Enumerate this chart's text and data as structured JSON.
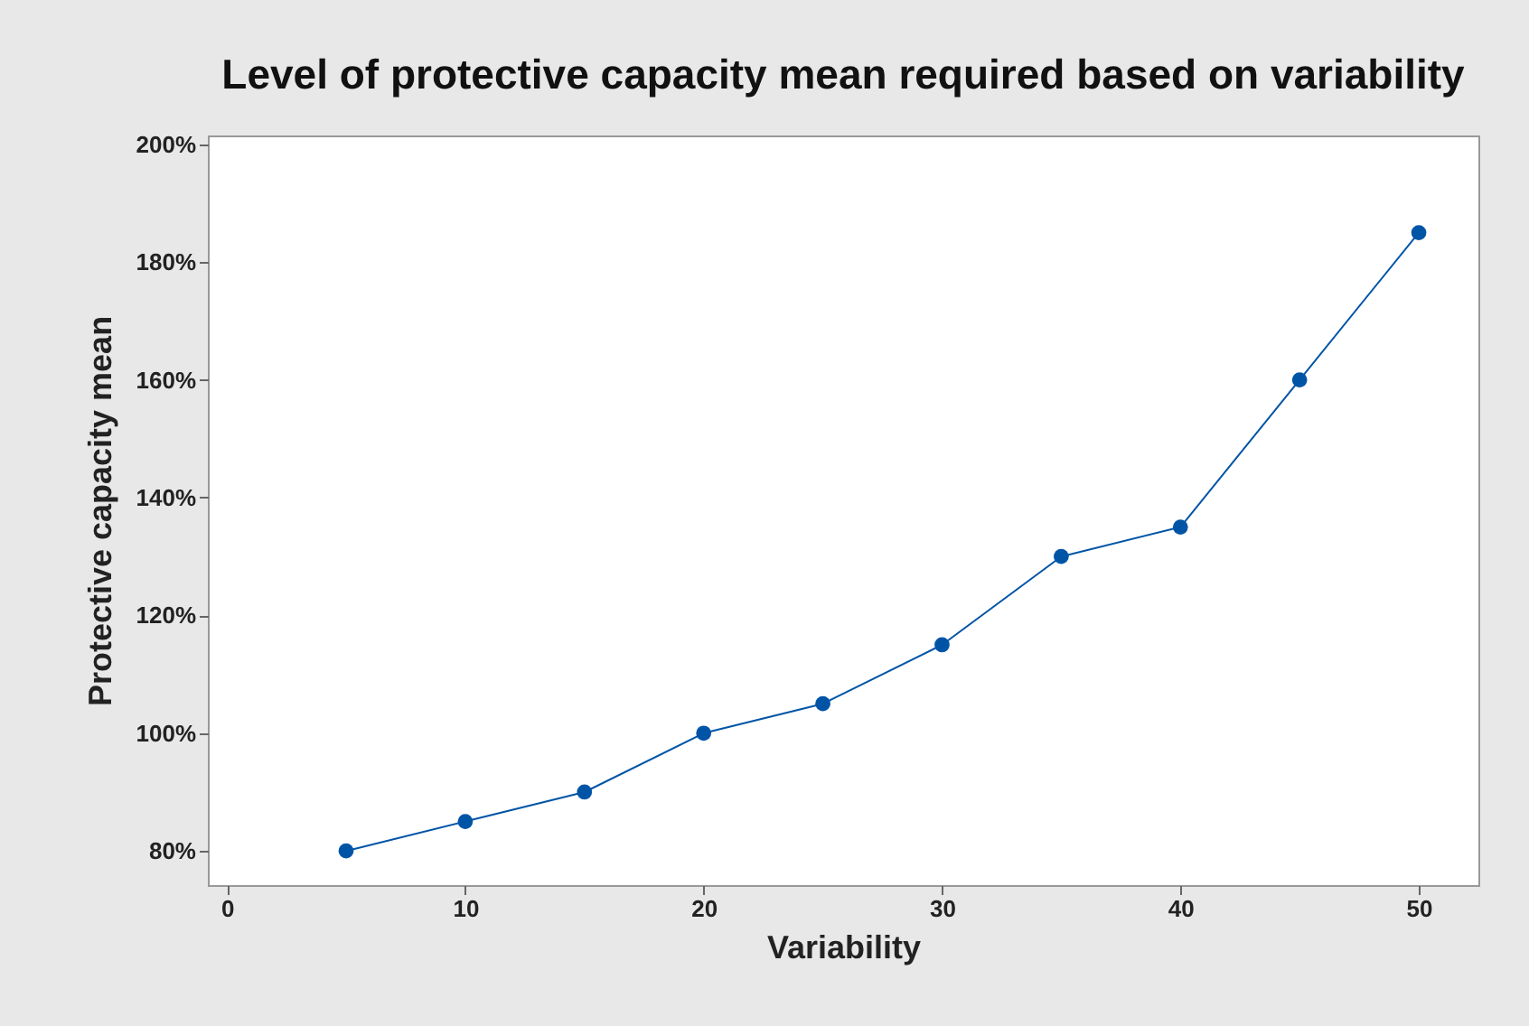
{
  "chart_data": {
    "type": "line",
    "title": "Level of protective capacity mean required based on variability",
    "xlabel": "Variability",
    "ylabel": "Protective capacity  mean",
    "x": [
      5,
      10,
      15,
      20,
      25,
      30,
      35,
      40,
      45,
      50
    ],
    "series": [
      {
        "color": "#0054a6",
        "values": [
          80,
          85,
          90,
          100,
          105,
          115,
          130,
          135,
          160,
          185
        ]
      }
    ],
    "xlim": [
      -0.8,
      52.5
    ],
    "xticks": [
      0,
      10,
      20,
      30,
      40,
      50
    ],
    "ylim": [
      74.2,
      201.5
    ],
    "yticks": [
      {
        "value": 80,
        "label": "80%"
      },
      {
        "value": 100,
        "label": "100%"
      },
      {
        "value": 120,
        "label": "120%"
      },
      {
        "value": 140,
        "label": "140%"
      },
      {
        "value": 160,
        "label": "160%"
      },
      {
        "value": 180,
        "label": "180%"
      },
      {
        "value": 200,
        "label": "200%"
      }
    ],
    "grid": false,
    "legend": false,
    "marker": "circle",
    "line_style": "solid"
  }
}
